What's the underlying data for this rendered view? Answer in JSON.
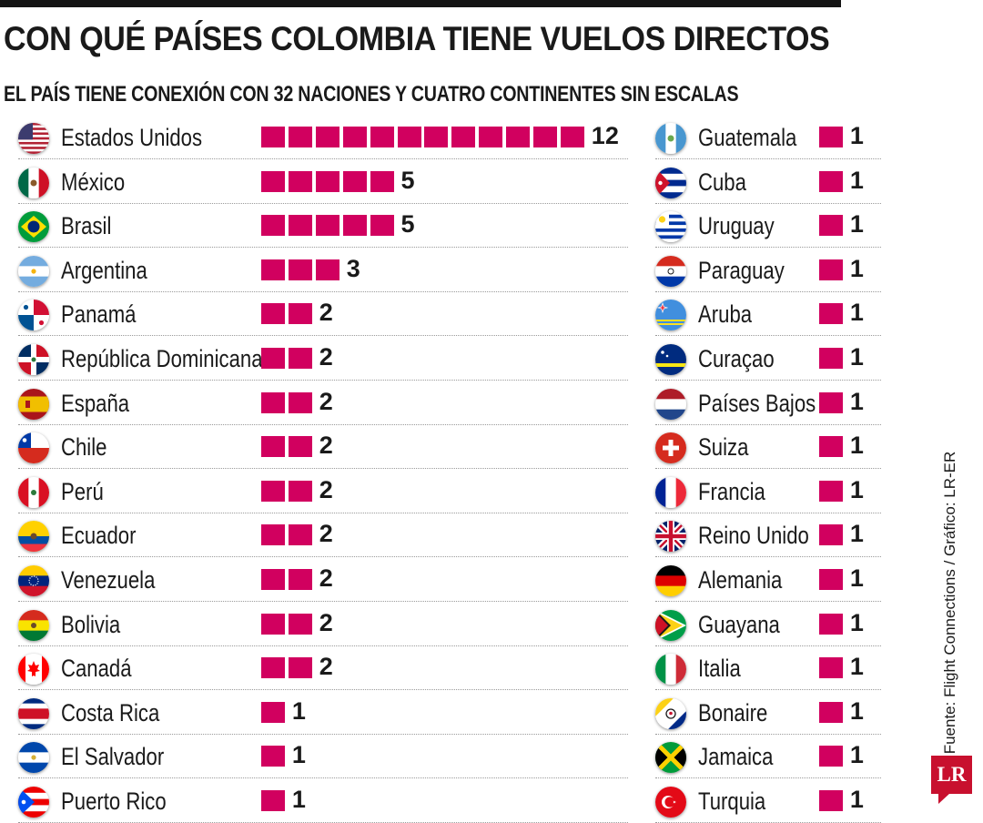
{
  "title": "CON QUÉ PAÍSES COLOMBIA TIENE VUELOS DIRECTOS",
  "subtitle": "EL PAÍS TIENE CONEXIÓN CON 32 NACIONES Y CUATRO CONTINENTES SIN ESCALAS",
  "source": "Fuente: Flight Connections / Gráfico: LR-ER",
  "logo_text": "LR",
  "accent_color": "#d1005f",
  "chart_data": {
    "type": "bar",
    "title": "CON QUÉ PAÍSES COLOMBIA TIENE VUELOS DIRECTOS",
    "subtitle": "EL PAÍS TIENE CONEXIÓN CON 32 NACIONES Y CUATRO CONTINENTES SIN ESCALAS",
    "orientation": "horizontal",
    "grid": false,
    "categories": [
      "Estados Unidos",
      "México",
      "Brasil",
      "Argentina",
      "Panamá",
      "República Dominicana",
      "España",
      "Chile",
      "Perú",
      "Ecuador",
      "Venezuela",
      "Bolivia",
      "Canadá",
      "Costa Rica",
      "El Salvador",
      "Puerto Rico",
      "Guatemala",
      "Cuba",
      "Uruguay",
      "Paraguay",
      "Aruba",
      "Curaçao",
      "Países Bajos",
      "Suiza",
      "Francia",
      "Reino Unido",
      "Alemania",
      "Guayana",
      "Italia",
      "Bonaire",
      "Jamaica",
      "Turquia"
    ],
    "values": [
      12,
      5,
      5,
      3,
      2,
      2,
      2,
      2,
      2,
      2,
      2,
      2,
      2,
      1,
      1,
      1,
      1,
      1,
      1,
      1,
      1,
      1,
      1,
      1,
      1,
      1,
      1,
      1,
      1,
      1,
      1,
      1
    ],
    "flags": [
      "usa-flag-icon",
      "mexico-flag-icon",
      "brazil-flag-icon",
      "argentina-flag-icon",
      "panama-flag-icon",
      "dominican-republic-flag-icon",
      "spain-flag-icon",
      "chile-flag-icon",
      "peru-flag-icon",
      "ecuador-flag-icon",
      "venezuela-flag-icon",
      "bolivia-flag-icon",
      "canada-flag-icon",
      "costa-rica-flag-icon",
      "el-salvador-flag-icon",
      "puerto-rico-flag-icon",
      "guatemala-flag-icon",
      "cuba-flag-icon",
      "uruguay-flag-icon",
      "paraguay-flag-icon",
      "aruba-flag-icon",
      "curacao-flag-icon",
      "netherlands-flag-icon",
      "switzerland-flag-icon",
      "france-flag-icon",
      "united-kingdom-flag-icon",
      "germany-flag-icon",
      "guyana-flag-icon",
      "italy-flag-icon",
      "bonaire-flag-icon",
      "jamaica-flag-icon",
      "turkey-flag-icon"
    ]
  }
}
